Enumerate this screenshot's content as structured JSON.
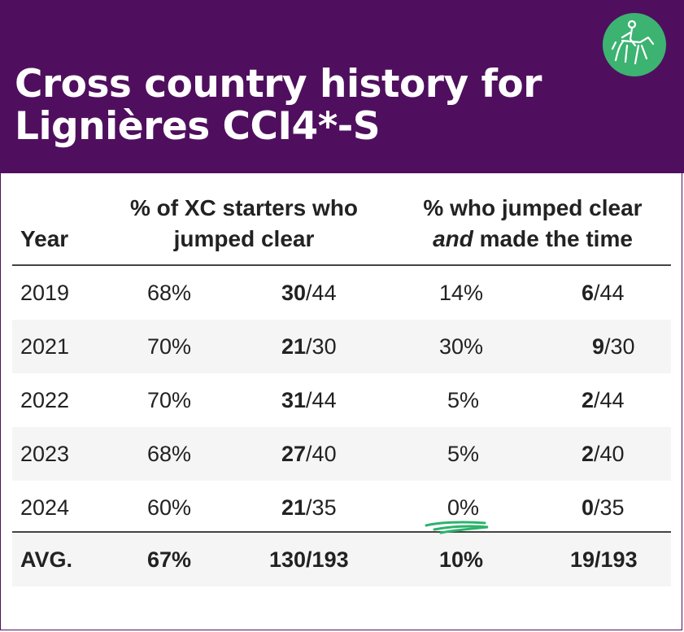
{
  "header": {
    "title_line1": "Cross country history for",
    "title_line2": "Lignières CCI4*-S",
    "background": "#4f0f5e",
    "logo_color": "#3cb371"
  },
  "table": {
    "columns": {
      "year": "Year",
      "clear_line1": "% of XC starters who",
      "clear_line2": "jumped clear",
      "time_line1": "% who jumped clear",
      "time_line2_em": "and",
      "time_line2_rest": " made the time"
    },
    "rows": [
      {
        "year": "2019",
        "clear_pct": "68%",
        "clear_n": "30",
        "clear_total": "/44",
        "time_pct": "14%",
        "time_n": "6",
        "time_total": "/44"
      },
      {
        "year": "2021",
        "clear_pct": "70%",
        "clear_n": "21",
        "clear_total": "/30",
        "time_pct": "30%",
        "time_n": "9",
        "time_total": "/30"
      },
      {
        "year": "2022",
        "clear_pct": "70%",
        "clear_n": "31",
        "clear_total": "/44",
        "time_pct": "5%",
        "time_n": "2",
        "time_total": "/44"
      },
      {
        "year": "2023",
        "clear_pct": "68%",
        "clear_n": "27",
        "clear_total": "/40",
        "time_pct": "5%",
        "time_n": "2",
        "time_total": "/40"
      },
      {
        "year": "2024",
        "clear_pct": "60%",
        "clear_n": "21",
        "clear_total": "/35",
        "time_pct": "0%",
        "time_n": "0",
        "time_total": "/35"
      }
    ],
    "average": {
      "label": "AVG.",
      "clear_pct": "67%",
      "clear_ratio": "130/193",
      "time_pct": "10%",
      "time_ratio": "19/193"
    }
  },
  "icons": {
    "logo": "horse-rider-icon",
    "underline": "green-scribble-underline"
  }
}
